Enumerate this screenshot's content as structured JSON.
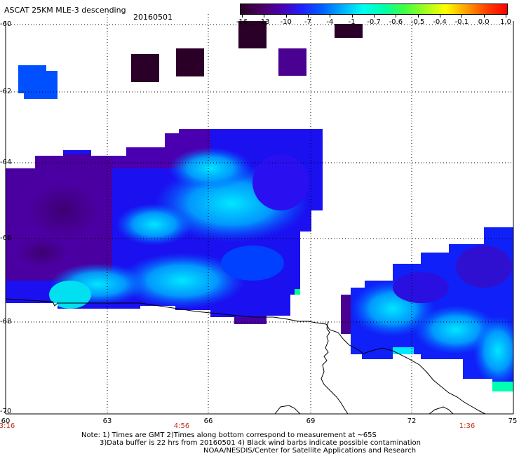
{
  "title": "ASCAT 25KM MLE-3 descending",
  "date": "20160501",
  "colorbar": {
    "labels": [
      "-16",
      "-13",
      "-10",
      "-7",
      "-4",
      "-1",
      "-0.7",
      "-0.6",
      "-0.5",
      "-0.4",
      "-0.1",
      "0.0",
      "1.0"
    ],
    "colors": [
      "#2a0028",
      "#4a0060",
      "#4a00b0",
      "#2020ff",
      "#0060ff",
      "#00b0ff",
      "#00ffee",
      "#00ffaa",
      "#40ff40",
      "#a0ff20",
      "#ffff00",
      "#ffa000",
      "#ff4000",
      "#ff0000"
    ]
  },
  "lat_labels": [
    "-60",
    "-62",
    "-64",
    "-66",
    "-68",
    "-70"
  ],
  "lon_labels": [
    "60",
    "63",
    "66",
    "69",
    "72",
    "75"
  ],
  "time_labels": [
    "3:16",
    "4:56",
    "1:36"
  ],
  "notes": [
    "Note: 1) Times are GMT 2)Times along bottom correspond to measurement at ~65S",
    "3)Data buffer is 22 hrs from 20160501 4) Black wind barbs indicate possible contamination",
    "NOAA/NESDIS/Center for Satellite Applications and Research"
  ]
}
